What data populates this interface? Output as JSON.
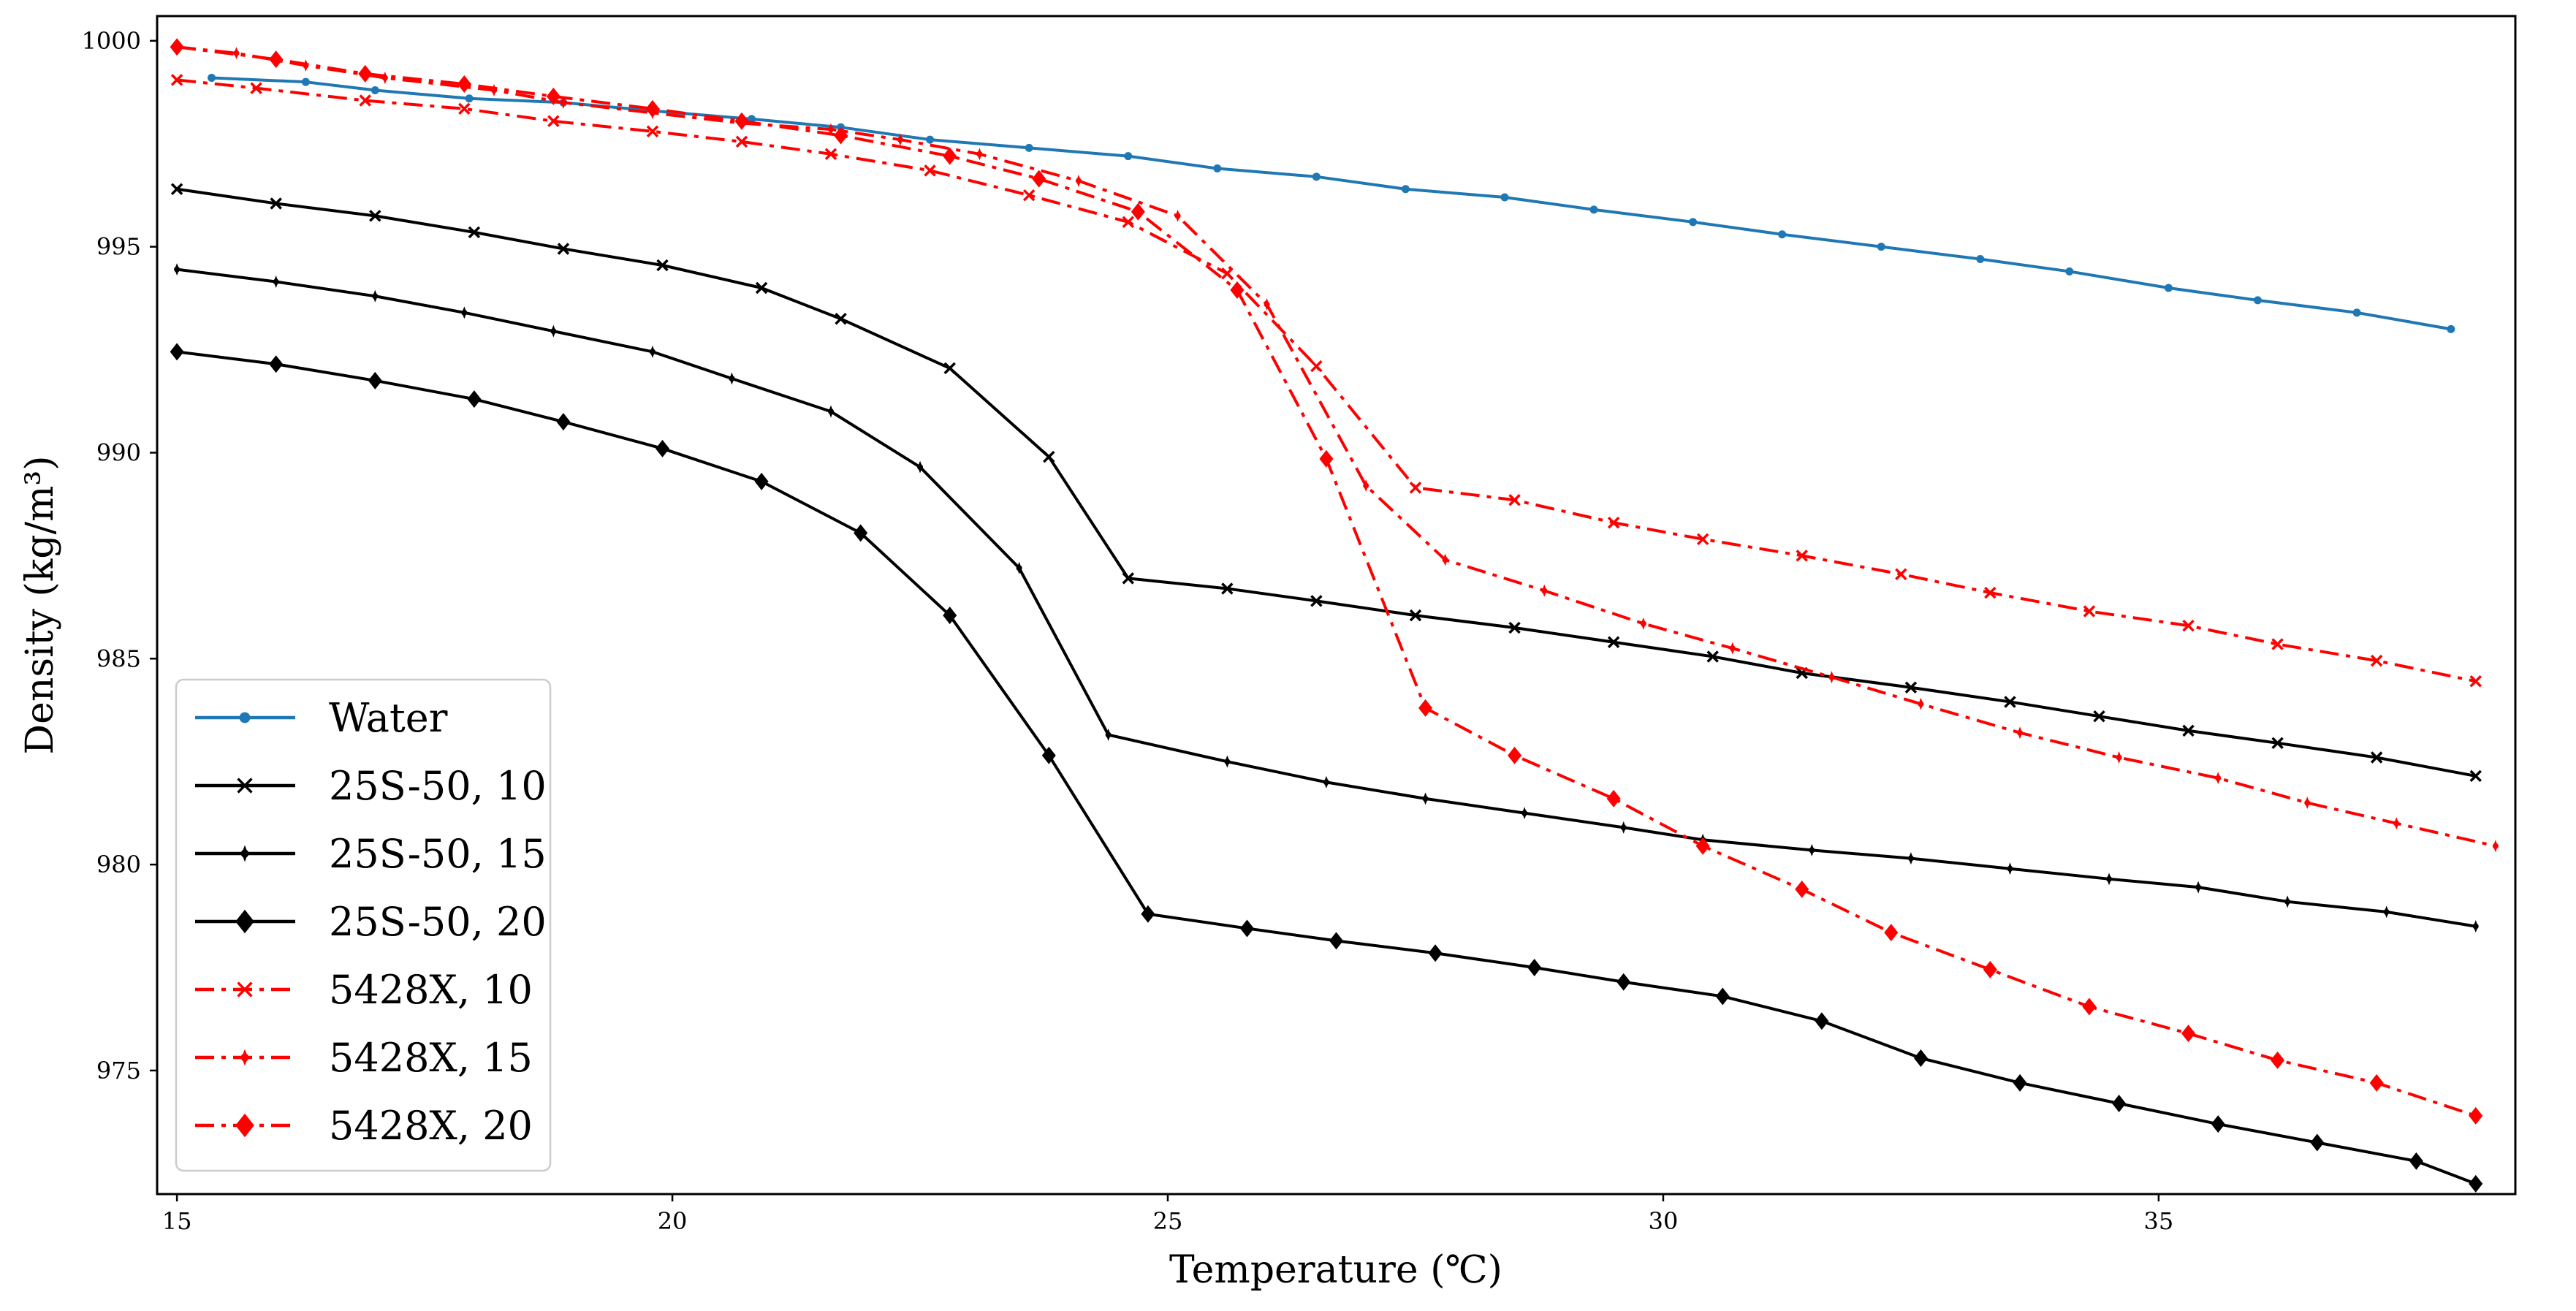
{
  "chart_data": {
    "type": "line",
    "title": "",
    "xlabel": "Temperature (℃)",
    "ylabel": "Density (kg/m³)",
    "xlim": [
      14.8,
      38.6
    ],
    "ylim": [
      972.0,
      1000.6
    ],
    "xticks": [
      15,
      20,
      25,
      30,
      35
    ],
    "yticks": [
      975,
      980,
      985,
      990,
      995,
      1000
    ],
    "grid": false,
    "legend_position": "lower-left",
    "series": [
      {
        "name": "Water",
        "color": "#1f77b4",
        "linestyle": "solid",
        "marker": "dot",
        "x": [
          15.35,
          16.3,
          17.0,
          17.95,
          18.9,
          19.8,
          20.8,
          21.7,
          22.6,
          23.6,
          24.6,
          25.5,
          26.5,
          27.4,
          28.4,
          29.3,
          30.3,
          31.2,
          32.2,
          33.2,
          34.1,
          35.1,
          36.0,
          37.0,
          37.95
        ],
        "y": [
          999.1,
          999.0,
          998.8,
          998.6,
          998.5,
          998.3,
          998.1,
          997.9,
          997.6,
          997.4,
          997.2,
          996.9,
          996.7,
          996.4,
          996.2,
          995.9,
          995.6,
          995.3,
          995.0,
          994.7,
          994.4,
          994.0,
          993.7,
          993.4,
          993.0
        ]
      },
      {
        "name": "25S-50, 10",
        "color": "#000000",
        "linestyle": "solid",
        "marker": "x",
        "x": [
          15.0,
          16.0,
          17.0,
          18.0,
          18.9,
          19.9,
          20.9,
          21.7,
          22.8,
          23.8,
          24.6,
          25.6,
          26.5,
          27.5,
          28.5,
          29.5,
          30.5,
          31.4,
          32.5,
          33.5,
          34.4,
          35.3,
          36.2,
          37.2,
          38.2
        ],
        "y": [
          996.4,
          996.05,
          995.75,
          995.35,
          994.95,
          994.55,
          994.0,
          993.25,
          992.05,
          989.9,
          986.95,
          986.7,
          986.4,
          986.05,
          985.75,
          985.4,
          985.05,
          984.65,
          984.3,
          983.95,
          983.6,
          983.25,
          982.95,
          982.6,
          982.15
        ]
      },
      {
        "name": "25S-50, 15",
        "color": "#000000",
        "linestyle": "solid",
        "marker": "plus",
        "x": [
          15.0,
          16.0,
          17.0,
          17.9,
          18.8,
          19.8,
          20.6,
          21.6,
          22.5,
          23.5,
          24.4,
          25.6,
          26.6,
          27.6,
          28.6,
          29.6,
          30.4,
          31.5,
          32.5,
          33.5,
          34.5,
          35.4,
          36.3,
          37.3,
          38.2
        ],
        "y": [
          994.45,
          994.15,
          993.8,
          993.4,
          992.95,
          992.45,
          991.8,
          991.0,
          989.65,
          987.2,
          983.15,
          982.5,
          982.0,
          981.6,
          981.25,
          980.9,
          980.6,
          980.35,
          980.15,
          979.9,
          979.65,
          979.45,
          979.1,
          978.85,
          978.5
        ]
      },
      {
        "name": "25S-50, 20",
        "color": "#000000",
        "linestyle": "solid",
        "marker": "diamond",
        "x": [
          15.0,
          16.0,
          17.0,
          18.0,
          18.9,
          19.9,
          20.9,
          21.9,
          22.8,
          23.8,
          24.8,
          25.8,
          26.7,
          27.7,
          28.7,
          29.6,
          30.6,
          31.6,
          32.6,
          33.6,
          34.6,
          35.6,
          36.6,
          37.6,
          38.2
        ],
        "y": [
          992.45,
          992.15,
          991.75,
          991.3,
          990.75,
          990.1,
          989.3,
          988.05,
          986.05,
          982.65,
          978.8,
          978.45,
          978.15,
          977.85,
          977.5,
          977.15,
          976.8,
          976.2,
          975.3,
          974.7,
          974.2,
          973.7,
          973.25,
          972.8,
          972.25
        ]
      },
      {
        "name": "5428X, 10",
        "color": "#ff0000",
        "linestyle": "dashdot",
        "marker": "x",
        "x": [
          15.0,
          15.8,
          16.9,
          17.9,
          18.8,
          19.8,
          20.7,
          21.6,
          22.6,
          23.6,
          24.6,
          25.6,
          26.5,
          27.5,
          28.5,
          29.5,
          30.4,
          31.4,
          32.4,
          33.3,
          34.3,
          35.3,
          36.2,
          37.2,
          38.2
        ],
        "y": [
          999.05,
          998.85,
          998.55,
          998.35,
          998.05,
          997.8,
          997.55,
          997.25,
          996.85,
          996.25,
          995.6,
          994.35,
          992.1,
          989.15,
          988.85,
          988.3,
          987.9,
          987.5,
          987.05,
          986.6,
          986.15,
          985.8,
          985.35,
          984.95,
          984.45
        ]
      },
      {
        "name": "5428X, 15",
        "color": "#ff0000",
        "linestyle": "dashdot",
        "marker": "plus",
        "x": [
          15.0,
          15.6,
          16.3,
          17.1,
          18.2,
          18.9,
          19.8,
          20.7,
          21.6,
          22.3,
          23.1,
          24.1,
          25.1,
          26.0,
          27.0,
          27.8,
          28.8,
          29.8,
          30.7,
          31.7,
          32.6,
          33.6,
          34.6,
          35.6,
          36.5,
          37.4,
          38.4
        ],
        "y": [
          999.85,
          999.7,
          999.4,
          999.1,
          998.8,
          998.5,
          998.25,
          998.0,
          997.85,
          997.6,
          997.25,
          996.6,
          995.75,
          993.6,
          989.2,
          987.4,
          986.65,
          985.85,
          985.25,
          984.55,
          983.9,
          983.2,
          982.6,
          982.1,
          981.5,
          981.0,
          980.45
        ]
      },
      {
        "name": "5428X, 20",
        "color": "#ff0000",
        "linestyle": "dashdot",
        "marker": "diamond",
        "x": [
          15.0,
          16.0,
          16.9,
          17.9,
          18.8,
          19.8,
          20.7,
          21.7,
          22.8,
          23.7,
          24.7,
          25.7,
          26.6,
          27.6,
          28.5,
          29.5,
          30.4,
          31.4,
          32.3,
          33.3,
          34.3,
          35.3,
          36.2,
          37.2,
          38.2
        ],
        "y": [
          999.85,
          999.55,
          999.2,
          998.95,
          998.65,
          998.35,
          998.05,
          997.7,
          997.2,
          996.65,
          995.85,
          993.95,
          989.85,
          983.8,
          982.65,
          981.6,
          980.45,
          979.4,
          978.35,
          977.45,
          976.55,
          975.9,
          975.25,
          974.7,
          973.9
        ]
      }
    ]
  }
}
